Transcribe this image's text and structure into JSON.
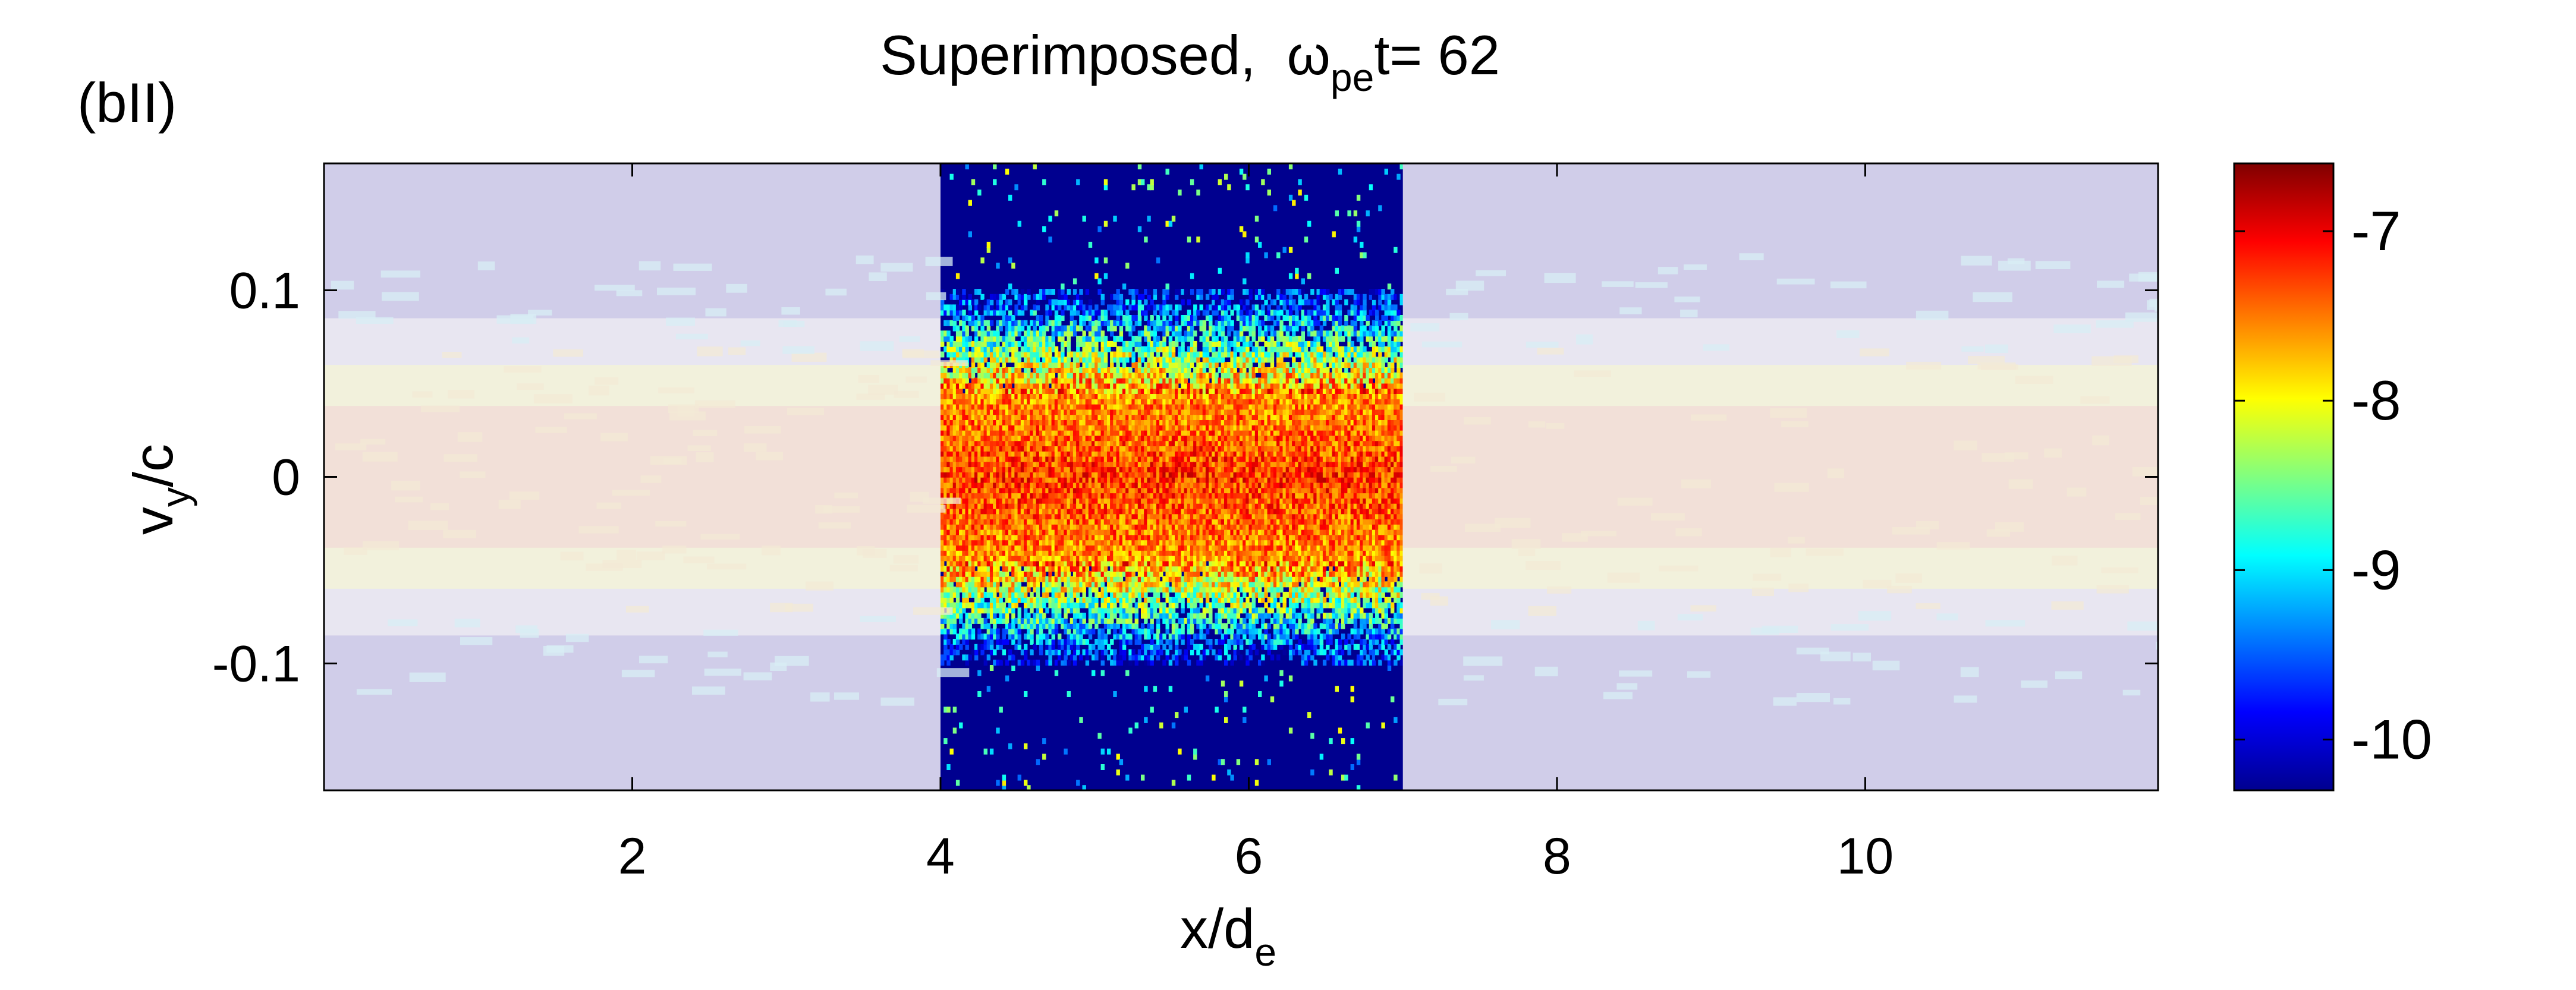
{
  "panel_label": "(bII)",
  "title": {
    "prefix": "Superimposed,  ",
    "symbol": "ω",
    "subscript": "pe",
    "suffix": "t= 62"
  },
  "chart_data": {
    "type": "heatmap",
    "x_range": [
      0.0,
      11.9
    ],
    "y_range": [
      -0.168,
      0.168
    ],
    "x_ticks": [
      {
        "value": 2,
        "label": "2"
      },
      {
        "value": 4,
        "label": "4"
      },
      {
        "value": 6,
        "label": "6"
      },
      {
        "value": 8,
        "label": "8"
      },
      {
        "value": 10,
        "label": "10"
      }
    ],
    "y_ticks": [
      {
        "value": 0.1,
        "label": "0.1"
      },
      {
        "value": 0,
        "label": "0"
      },
      {
        "value": -0.1,
        "label": "-0.1"
      }
    ],
    "xlabel": {
      "main": "x/d",
      "sub": "e"
    },
    "ylabel": {
      "main": "v",
      "sub": "y",
      "tail": "/c"
    },
    "highlight_x_range": [
      4.0,
      7.0
    ],
    "outside_region": "faded overlay",
    "background_color": "#00008f",
    "colorbar": {
      "range": [
        -10.3,
        -6.6
      ],
      "colormap": "jet",
      "ticks": [
        {
          "value": -7,
          "label": "-7"
        },
        {
          "value": -8,
          "label": "-8"
        },
        {
          "value": -9,
          "label": "-9"
        },
        {
          "value": -10,
          "label": "-10"
        }
      ]
    },
    "distribution": {
      "peak_value": -7.0,
      "core_half_width": 0.045,
      "edge_half_width": 0.1,
      "y_center": 0
    }
  }
}
